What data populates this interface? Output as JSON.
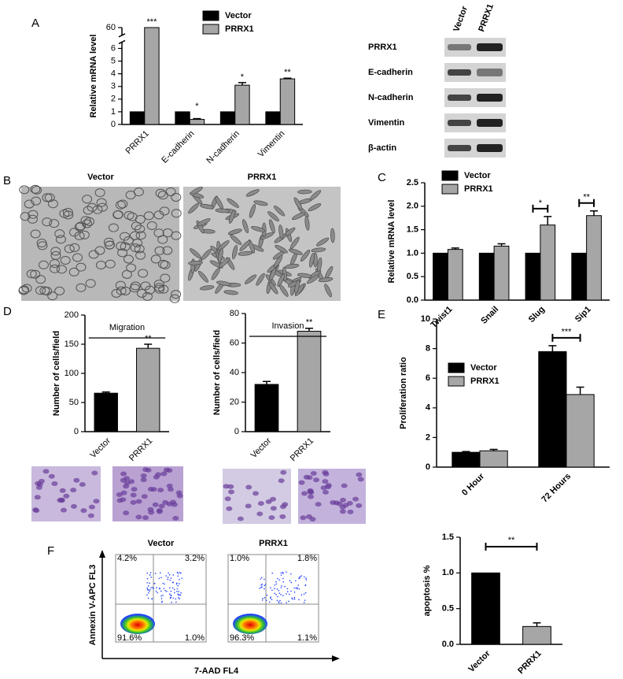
{
  "panel_labels": [
    "A",
    "B",
    "C",
    "D",
    "E",
    "F"
  ],
  "blot": {
    "columns": [
      "Vector",
      "PRRX1"
    ],
    "rows": [
      "PRRX1",
      "E-cadherin",
      "N-cadherin",
      "Vimentin",
      "β-actin"
    ]
  },
  "micrographs": {
    "titles": [
      "Vector",
      "PRRX1"
    ]
  },
  "flow": {
    "y_label": "Annexin V-APC  FL3",
    "x_label": "7-AAD  FL4",
    "plots": [
      {
        "title": "Vector",
        "quadrants": [
          "4.2%",
          "3.2%",
          "91.6%",
          "1.0%"
        ]
      },
      {
        "title": "PRRX1",
        "quadrants": [
          "1.0%",
          "1.8%",
          "96.3%",
          "1.1%"
        ]
      }
    ]
  },
  "chart_data": [
    {
      "type": "bar",
      "y_label": "Relative mRNA level",
      "categories": [
        "PRRX1",
        "E-cadherin",
        "N-cadherin",
        "Vimentin"
      ],
      "series": [
        {
          "name": "Vector",
          "color": "#000000",
          "values": [
            1,
            1,
            1,
            1
          ]
        },
        {
          "name": "PRRX1",
          "color": "#a6a6a6",
          "values": [
            60,
            0.4,
            3.1,
            3.6
          ],
          "errors": [
            null,
            0.06,
            0.2,
            0.05
          ]
        }
      ],
      "annotations": [
        "***",
        "*",
        "*",
        "**"
      ],
      "ylim": [
        0,
        60
      ],
      "ybreak": [
        6.5,
        59
      ],
      "yticks": [
        0,
        1,
        2,
        3,
        4,
        5,
        6,
        60
      ]
    },
    {
      "type": "bar",
      "y_label": "Relative mRNA level",
      "categories": [
        "Twist1",
        "Snail",
        "Slug",
        "Sip1"
      ],
      "series": [
        {
          "name": "Vector",
          "color": "#000000",
          "values": [
            1,
            1,
            1,
            1
          ]
        },
        {
          "name": "PRRX1",
          "color": "#a6a6a6",
          "values": [
            1.08,
            1.15,
            1.6,
            1.8
          ],
          "errors": [
            0.03,
            0.05,
            0.18,
            0.1
          ]
        }
      ],
      "annotations": [
        null,
        null,
        "*",
        "**"
      ],
      "ylim": [
        0,
        2.5
      ],
      "yticks": [
        {
          "value": 0,
          "label": "0.0"
        },
        {
          "value": 0.5,
          "label": "0.5"
        },
        {
          "value": 1,
          "label": "1.0"
        },
        {
          "value": 1.5,
          "label": "1.5"
        },
        {
          "value": 2,
          "label": "2.0"
        },
        {
          "value": 2.5,
          "label": "2.5"
        }
      ]
    },
    {
      "type": "bar",
      "title": "Migration",
      "y_label": "Number of cells/field",
      "categories": [
        "Vector",
        "PRRX1"
      ],
      "values": [
        66,
        143
      ],
      "errors": [
        2,
        7
      ],
      "colors": [
        "#000000",
        "#a6a6a6"
      ],
      "annotations": [
        null,
        "**"
      ],
      "ylim": [
        0,
        200
      ],
      "yticks": [
        0,
        50,
        100,
        150,
        200
      ]
    },
    {
      "type": "bar",
      "title": "Invasion",
      "y_label": "Number of cells/field",
      "categories": [
        "Vector",
        "PRRX1"
      ],
      "values": [
        32,
        68
      ],
      "errors": [
        2,
        2
      ],
      "colors": [
        "#000000",
        "#a6a6a6"
      ],
      "annotations": [
        null,
        "**"
      ],
      "ylim": [
        0,
        80
      ],
      "yticks": [
        0,
        20,
        40,
        60,
        80
      ]
    },
    {
      "type": "bar",
      "y_label": "Proliferation ratio",
      "categories": [
        "0 Hour",
        "72 Hours"
      ],
      "series": [
        {
          "name": "Vector",
          "color": "#000000",
          "values": [
            1,
            7.8
          ],
          "errors": [
            0.05,
            0.4
          ]
        },
        {
          "name": "PRRX1",
          "color": "#a6a6a6",
          "values": [
            1.1,
            4.9
          ],
          "errors": [
            0.1,
            0.5
          ]
        }
      ],
      "annotations": [
        null,
        "***"
      ],
      "ylim": [
        0,
        10
      ],
      "yticks": [
        0,
        2,
        4,
        6,
        8,
        10
      ]
    },
    {
      "type": "bar",
      "y_label": "apoptosis %",
      "categories": [
        "Vector",
        "PRRX1"
      ],
      "values": [
        1,
        0.25
      ],
      "errors": [
        null,
        0.05
      ],
      "colors": [
        "#000000",
        "#a6a6a6"
      ],
      "annotations": [
        null,
        "**"
      ],
      "ylim": [
        0,
        1.5
      ],
      "yticks": [
        {
          "value": 0,
          "label": "0.0"
        },
        {
          "value": 0.5,
          "label": "0.5"
        },
        {
          "value": 1,
          "label": "1.0"
        },
        {
          "value": 1.5,
          "label": "1.5"
        }
      ]
    }
  ]
}
